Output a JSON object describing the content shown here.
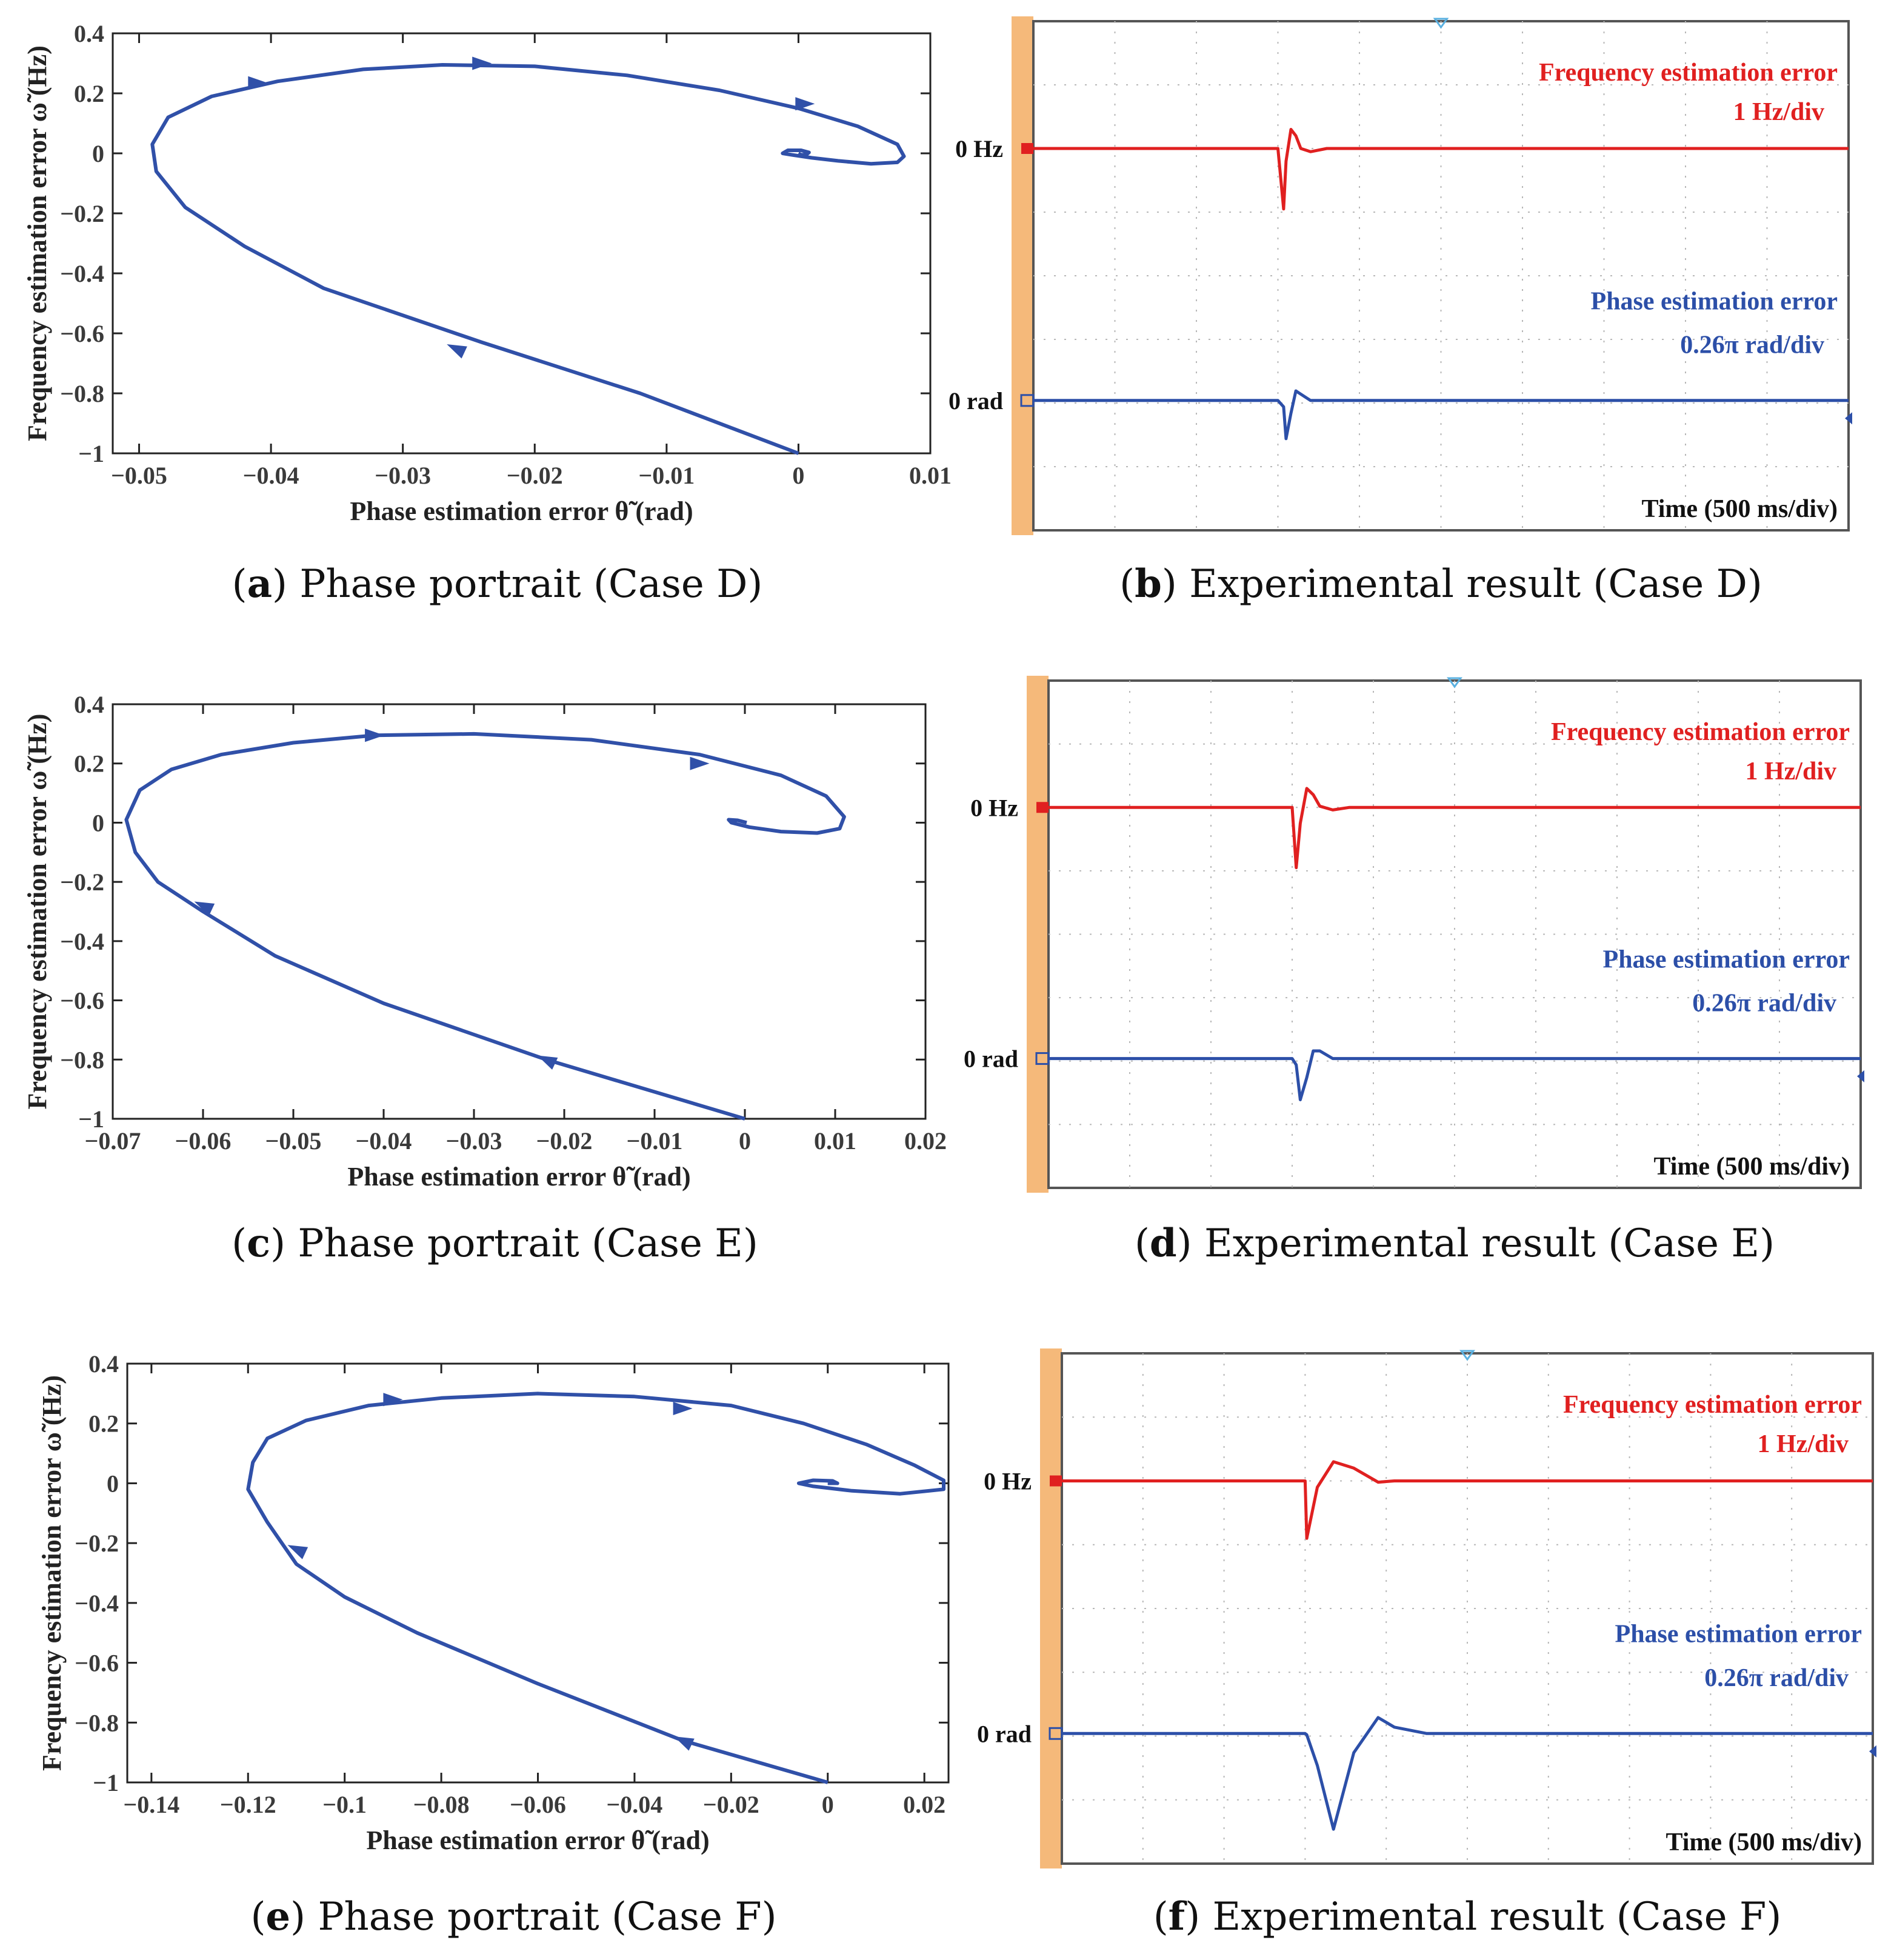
{
  "chart_data": [
    {
      "type": "line",
      "panel": "a",
      "caption_letter": "a",
      "caption_text": "Phase portrait (Case D)",
      "xlabel": "Phase estimation error θ̃ (rad)",
      "ylabel": "Frequency estimation error ω̃ (Hz)",
      "xlim": [
        -0.052,
        0.01
      ],
      "ylim": [
        -1,
        0.4
      ],
      "xticks": [
        -0.05,
        -0.04,
        -0.03,
        -0.02,
        -0.01,
        0,
        0.01
      ],
      "xtick_labels": [
        "−0.05",
        "−0.04",
        "−0.03",
        "−0.02",
        "−0.01",
        "0",
        "0.01"
      ],
      "yticks": [
        0.4,
        0.2,
        0,
        -0.2,
        -0.4,
        -0.6,
        -0.8,
        -1
      ],
      "ytick_labels": [
        "0.4",
        "0.2",
        "0",
        "−0.2",
        "−0.4",
        "−0.6",
        "−0.8",
        "−1"
      ],
      "color": "#3050a8",
      "x": [
        0,
        -0.012,
        -0.024,
        -0.036,
        -0.042,
        -0.0465,
        -0.0487,
        -0.049,
        -0.0478,
        -0.0445,
        -0.0395,
        -0.033,
        -0.027,
        -0.02,
        -0.013,
        -0.006,
        0,
        0.0045,
        0.0075,
        0.008,
        0.0075,
        0.0055,
        0.003,
        0.001,
        -0.0005,
        -0.0012,
        -0.0008,
        0.0002,
        0.0008,
        0.0006,
        0.0002,
        0
      ],
      "y": [
        -1,
        -0.8,
        -0.63,
        -0.45,
        -0.31,
        -0.18,
        -0.06,
        0.03,
        0.12,
        0.19,
        0.24,
        0.28,
        0.295,
        0.29,
        0.26,
        0.21,
        0.15,
        0.09,
        0.03,
        -0.01,
        -0.03,
        -0.035,
        -0.025,
        -0.015,
        -0.005,
        0,
        0.01,
        0.01,
        0.003,
        -0.004,
        -0.005,
        0
      ],
      "arrows": [
        [
          -0.026,
          -0.65,
          1
        ],
        [
          -0.041,
          0.235,
          0
        ],
        [
          -0.024,
          0.3,
          0
        ],
        [
          0.0005,
          0.165,
          0
        ]
      ]
    },
    {
      "type": "line",
      "panel": "c",
      "caption_letter": "c",
      "caption_text": "Phase portrait (Case E)",
      "xlabel": "Phase estimation error θ̃ (rad)",
      "ylabel": "Frequency estimation error ω̃ (Hz)",
      "xlim": [
        -0.07,
        0.02
      ],
      "ylim": [
        -1,
        0.4
      ],
      "xticks": [
        -0.07,
        -0.06,
        -0.05,
        -0.04,
        -0.03,
        -0.02,
        -0.01,
        0,
        0.01,
        0.02
      ],
      "xtick_labels": [
        "−0.07",
        "−0.06",
        "−0.05",
        "−0.04",
        "−0.03",
        "−0.02",
        "−0.01",
        "0",
        "0.01",
        "0.02"
      ],
      "yticks": [
        0.4,
        0.2,
        0,
        -0.2,
        -0.4,
        -0.6,
        -0.8,
        -1
      ],
      "ytick_labels": [
        "0.4",
        "0.2",
        "0",
        "−0.2",
        "−0.4",
        "−0.6",
        "−0.8",
        "−1"
      ],
      "color": "#3050a8",
      "x": [
        0,
        -0.022,
        -0.04,
        -0.052,
        -0.06,
        -0.065,
        -0.0675,
        -0.0685,
        -0.067,
        -0.0635,
        -0.058,
        -0.05,
        -0.041,
        -0.03,
        -0.017,
        -0.005,
        0.004,
        0.009,
        0.011,
        0.0105,
        0.008,
        0.004,
        0.0005,
        -0.0015,
        -0.0018,
        -0.0008,
        0.0002
      ],
      "y": [
        -1,
        -0.8,
        -0.61,
        -0.45,
        -0.3,
        -0.2,
        -0.1,
        0.01,
        0.11,
        0.18,
        0.23,
        0.27,
        0.295,
        0.3,
        0.28,
        0.23,
        0.16,
        0.09,
        0.02,
        -0.02,
        -0.035,
        -0.03,
        -0.015,
        0,
        0.01,
        0.008,
        0
      ],
      "arrows": [
        [
          -0.022,
          -0.8,
          1
        ],
        [
          -0.06,
          -0.28,
          1
        ],
        [
          -0.041,
          0.295,
          0
        ],
        [
          -0.005,
          0.2,
          0
        ]
      ]
    },
    {
      "type": "line",
      "panel": "e",
      "caption_letter": "e",
      "caption_text": "Phase portrait (Case F)",
      "xlabel": "Phase estimation error θ̃ (rad)",
      "ylabel": "Frequency estimation error ω̃ (Hz)",
      "xlim": [
        -0.145,
        0.025
      ],
      "ylim": [
        -1,
        0.4
      ],
      "xticks": [
        -0.14,
        -0.12,
        -0.1,
        -0.08,
        -0.06,
        -0.04,
        -0.02,
        0,
        0.02
      ],
      "xtick_labels": [
        "−0.14",
        "−0.12",
        "−0.1",
        "−0.08",
        "−0.06",
        "−0.04",
        "−0.02",
        "0",
        "0.02"
      ],
      "yticks": [
        0.4,
        0.2,
        0,
        -0.2,
        -0.4,
        -0.6,
        -0.8,
        -1
      ],
      "ytick_labels": [
        "0.4",
        "0.2",
        "0",
        "−0.2",
        "−0.4",
        "−0.6",
        "−0.8",
        "−1"
      ],
      "color": "#3050a8",
      "x": [
        0,
        -0.03,
        -0.06,
        -0.085,
        -0.1,
        -0.11,
        -0.116,
        -0.12,
        -0.119,
        -0.116,
        -0.108,
        -0.095,
        -0.08,
        -0.06,
        -0.04,
        -0.02,
        -0.005,
        0.008,
        0.018,
        0.024,
        0.024,
        0.015,
        0.005,
        -0.003,
        -0.006,
        -0.003,
        0.001,
        0.002,
        0
      ],
      "y": [
        -1,
        -0.86,
        -0.67,
        -0.5,
        -0.38,
        -0.27,
        -0.13,
        -0.02,
        0.07,
        0.15,
        0.21,
        0.26,
        0.285,
        0.3,
        0.29,
        0.26,
        0.2,
        0.13,
        0.06,
        0.01,
        -0.02,
        -0.035,
        -0.025,
        -0.01,
        0,
        0.01,
        0.008,
        0,
        0
      ],
      "arrows": [
        [
          -0.03,
          -0.86,
          1
        ],
        [
          -0.11,
          -0.22,
          1
        ],
        [
          -0.09,
          0.28,
          0
        ],
        [
          -0.03,
          0.25,
          0
        ]
      ]
    },
    {
      "type": "line",
      "panel": "b",
      "caption_letter": "b",
      "caption_text": "Experimental result (Case D)",
      "freq_label": "Frequency estimation error",
      "freq_scale": "1 Hz/div",
      "phase_label": "Phase estimation error",
      "phase_scale": "0.26π rad/div",
      "time_label": "Time (500 ms/div)",
      "ref_freq": "0 Hz",
      "ref_phase": "0 rad",
      "freq_color": "#e02020",
      "phase_color": "#2c4fa8",
      "grid_x": 10,
      "grid_y": 8,
      "t": [
        0,
        3.0,
        3.07,
        3.1,
        3.16,
        3.22,
        3.28,
        3.4,
        3.6,
        10
      ],
      "freq": [
        0,
        0,
        -0.95,
        -0.2,
        0.3,
        0.2,
        0,
        -0.05,
        0,
        0
      ],
      "phase": [
        0,
        0,
        -0.1,
        -0.6,
        -0.2,
        0.15,
        0.1,
        0,
        0,
        0
      ]
    },
    {
      "type": "line",
      "panel": "d",
      "caption_letter": "d",
      "caption_text": "Experimental result (Case E)",
      "freq_label": "Frequency estimation error",
      "freq_scale": "1 Hz/div",
      "phase_label": "Phase estimation error",
      "phase_scale": "0.26π rad/div",
      "time_label": "Time (500 ms/div)",
      "ref_freq": "0 Hz",
      "ref_phase": "0 rad",
      "freq_color": "#e02020",
      "phase_color": "#2c4fa8",
      "grid_x": 10,
      "grid_y": 8,
      "t": [
        0,
        3.0,
        3.05,
        3.1,
        3.18,
        3.26,
        3.34,
        3.5,
        3.7,
        10
      ],
      "freq": [
        0,
        0,
        -0.95,
        -0.25,
        0.3,
        0.2,
        0.02,
        -0.04,
        0,
        0
      ],
      "phase": [
        0,
        0,
        -0.1,
        -0.65,
        -0.3,
        0.12,
        0.12,
        0,
        0,
        0
      ]
    },
    {
      "type": "line",
      "panel": "f",
      "caption_letter": "f",
      "caption_text": "Experimental result (Case F)",
      "freq_label": "Frequency estimation error",
      "freq_scale": "1 Hz/div",
      "phase_label": "Phase estimation error",
      "phase_scale": "0.26π rad/div",
      "time_label": "Time (500 ms/div)",
      "ref_freq": "0 Hz",
      "ref_phase": "0 rad",
      "freq_color": "#e02020",
      "phase_color": "#2c4fa8",
      "grid_x": 10,
      "grid_y": 8,
      "t": [
        0,
        3.0,
        3.02,
        3.15,
        3.35,
        3.6,
        3.9,
        4.1,
        4.5,
        10
      ],
      "freq": [
        0,
        0,
        -0.9,
        -0.1,
        0.3,
        0.2,
        -0.02,
        0,
        0,
        0
      ],
      "phase": [
        0,
        0,
        -0.02,
        -0.5,
        -1.5,
        -0.3,
        0.25,
        0.1,
        0,
        0
      ]
    }
  ]
}
